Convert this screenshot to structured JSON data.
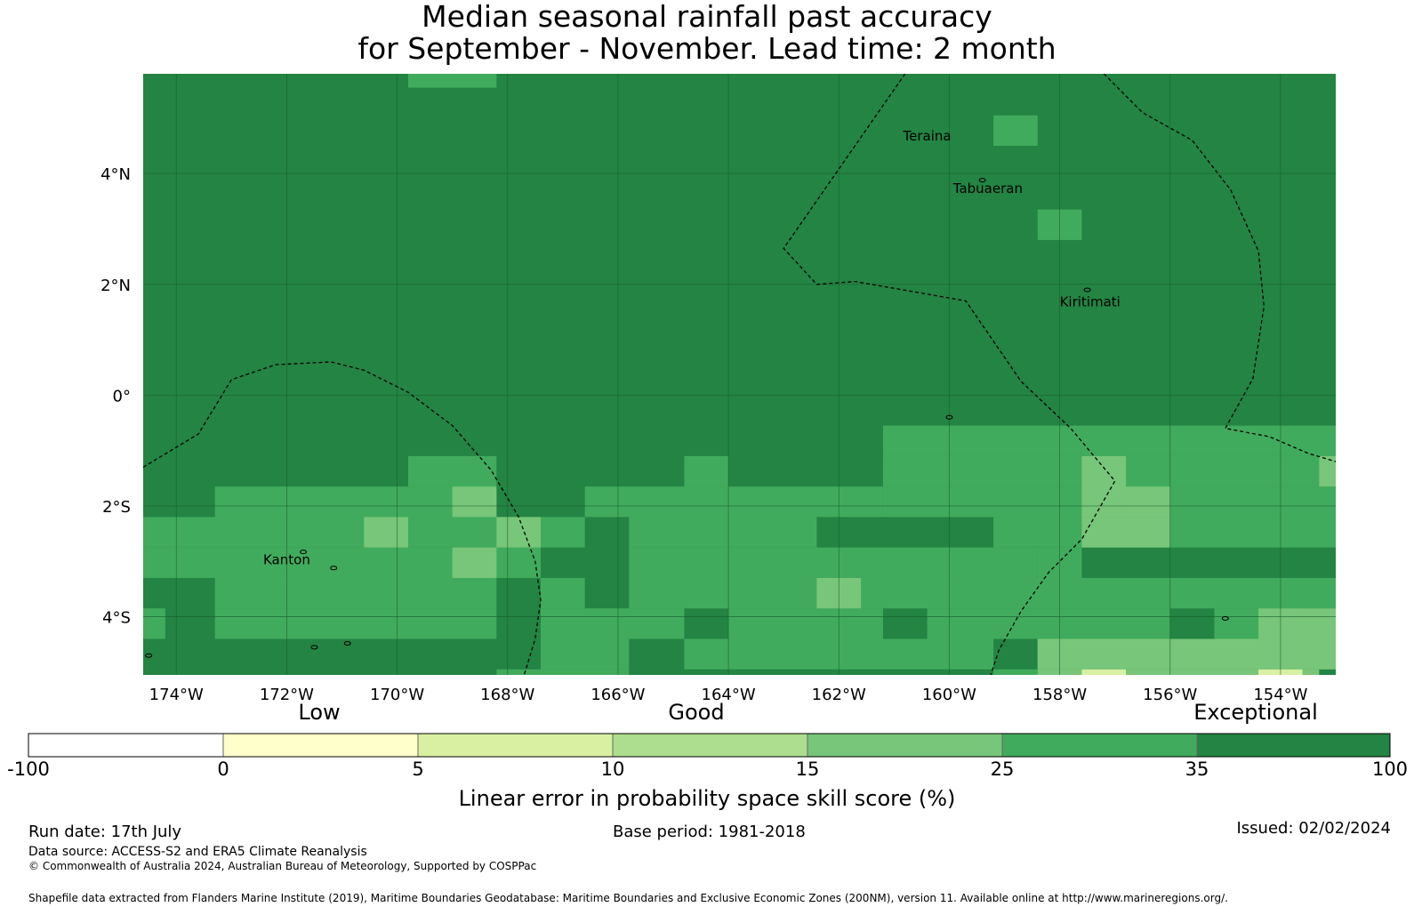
{
  "title_line1": "Median seasonal rainfall past accuracy",
  "title_line2": "for September - November. Lead time: 2 month",
  "map": {
    "lon_range": [
      -174.6,
      -153.0
    ],
    "lat_range": [
      -5.05,
      5.8
    ],
    "lon_ticks": [
      {
        "value": -174,
        "label": "174°W"
      },
      {
        "value": -172,
        "label": "172°W"
      },
      {
        "value": -170,
        "label": "170°W"
      },
      {
        "value": -168,
        "label": "168°W"
      },
      {
        "value": -166,
        "label": "166°W"
      },
      {
        "value": -164,
        "label": "164°W"
      },
      {
        "value": -162,
        "label": "162°W"
      },
      {
        "value": -160,
        "label": "160°W"
      },
      {
        "value": -158,
        "label": "158°W"
      },
      {
        "value": -156,
        "label": "156°W"
      },
      {
        "value": -154,
        "label": "154°W"
      }
    ],
    "lat_ticks": [
      {
        "value": 4,
        "label": "4°N"
      },
      {
        "value": 2,
        "label": "2°N"
      },
      {
        "value": 0,
        "label": "0°"
      },
      {
        "value": -2,
        "label": "2°S"
      },
      {
        "value": -4,
        "label": "4°S"
      }
    ],
    "base_color": "#238443",
    "grid_color": "#1a5c2f",
    "skill_cells": [
      {
        "lon": [
          -169.8,
          -168.2
        ],
        "lat": [
          5.55,
          5.8
        ],
        "color": "#41ab5d"
      },
      {
        "lon": [
          -159.2,
          -158.4
        ],
        "lat": [
          4.5,
          5.05
        ],
        "color": "#41ab5d"
      },
      {
        "lon": [
          -158.4,
          -157.6
        ],
        "lat": [
          2.8,
          3.35
        ],
        "color": "#41ab5d"
      },
      {
        "lon": [
          -161.2,
          -153.0
        ],
        "lat": [
          -1.1,
          -0.55
        ],
        "color": "#41ab5d"
      },
      {
        "lon": [
          -169.8,
          -168.2
        ],
        "lat": [
          -1.65,
          -1.1
        ],
        "color": "#41ab5d"
      },
      {
        "lon": [
          -164.8,
          -164.0
        ],
        "lat": [
          -1.65,
          -1.1
        ],
        "color": "#41ab5d"
      },
      {
        "lon": [
          -161.2,
          -153.0
        ],
        "lat": [
          -1.65,
          -1.1
        ],
        "color": "#41ab5d"
      },
      {
        "lon": [
          -173.3,
          -168.2
        ],
        "lat": [
          -2.2,
          -1.65
        ],
        "color": "#41ab5d"
      },
      {
        "lon": [
          -166.6,
          -161.2
        ],
        "lat": [
          -2.2,
          -1.65
        ],
        "color": "#41ab5d"
      },
      {
        "lon": [
          -161.2,
          -153.0
        ],
        "lat": [
          -2.2,
          -1.65
        ],
        "color": "#41ab5d"
      },
      {
        "lon": [
          -174.6,
          -166.6
        ],
        "lat": [
          -2.75,
          -2.2
        ],
        "color": "#41ab5d"
      },
      {
        "lon": [
          -165.8,
          -162.4
        ],
        "lat": [
          -2.75,
          -2.2
        ],
        "color": "#41ab5d"
      },
      {
        "lon": [
          -159.2,
          -153.0
        ],
        "lat": [
          -2.75,
          -2.2
        ],
        "color": "#41ab5d"
      },
      {
        "lon": [
          -174.6,
          -167.4
        ],
        "lat": [
          -3.3,
          -2.75
        ],
        "color": "#41ab5d"
      },
      {
        "lon": [
          -165.8,
          -158.4
        ],
        "lat": [
          -3.3,
          -2.75
        ],
        "color": "#41ab5d"
      },
      {
        "lon": [
          -158.4,
          -157.6
        ],
        "lat": [
          -3.3,
          -2.75
        ],
        "color": "#41ab5d"
      },
      {
        "lon": [
          -173.3,
          -168.2
        ],
        "lat": [
          -3.85,
          -3.3
        ],
        "color": "#41ab5d"
      },
      {
        "lon": [
          -167.4,
          -166.6
        ],
        "lat": [
          -3.85,
          -3.3
        ],
        "color": "#41ab5d"
      },
      {
        "lon": [
          -165.8,
          -153.0
        ],
        "lat": [
          -3.85,
          -3.3
        ],
        "color": "#41ab5d"
      },
      {
        "lon": [
          -174.6,
          -174.2
        ],
        "lat": [
          -4.4,
          -3.85
        ],
        "color": "#41ab5d"
      },
      {
        "lon": [
          -173.3,
          -168.2
        ],
        "lat": [
          -4.4,
          -3.85
        ],
        "color": "#41ab5d"
      },
      {
        "lon": [
          -167.4,
          -164.8
        ],
        "lat": [
          -4.4,
          -3.85
        ],
        "color": "#41ab5d"
      },
      {
        "lon": [
          -164.0,
          -161.2
        ],
        "lat": [
          -4.4,
          -3.85
        ],
        "color": "#41ab5d"
      },
      {
        "lon": [
          -160.4,
          -156.0
        ],
        "lat": [
          -4.4,
          -3.85
        ],
        "color": "#41ab5d"
      },
      {
        "lon": [
          -155.2,
          -153.6
        ],
        "lat": [
          -4.4,
          -3.85
        ],
        "color": "#41ab5d"
      },
      {
        "lon": [
          -167.4,
          -165.8
        ],
        "lat": [
          -4.95,
          -4.4
        ],
        "color": "#41ab5d"
      },
      {
        "lon": [
          -164.8,
          -159.2
        ],
        "lat": [
          -4.95,
          -4.4
        ],
        "color": "#41ab5d"
      },
      {
        "lon": [
          -158.4,
          -153.0
        ],
        "lat": [
          -4.95,
          -4.4
        ],
        "color": "#41ab5d"
      },
      {
        "lon": [
          -168.2,
          -165.8
        ],
        "lat": [
          -5.05,
          -4.95
        ],
        "color": "#41ab5d"
      },
      {
        "lon": [
          -159.2,
          -158.4
        ],
        "lat": [
          -5.05,
          -4.95
        ],
        "color": "#41ab5d"
      },
      {
        "lon": [
          -153.3,
          -153.0
        ],
        "lat": [
          -1.65,
          -1.1
        ],
        "color": "#78c679"
      },
      {
        "lon": [
          -157.6,
          -156.8
        ],
        "lat": [
          -2.2,
          -1.1
        ],
        "color": "#78c679"
      },
      {
        "lon": [
          -156.8,
          -156.0
        ],
        "lat": [
          -2.2,
          -1.65
        ],
        "color": "#78c679"
      },
      {
        "lon": [
          -169.0,
          -168.2
        ],
        "lat": [
          -2.2,
          -1.65
        ],
        "color": "#78c679"
      },
      {
        "lon": [
          -170.6,
          -169.8
        ],
        "lat": [
          -2.75,
          -2.2
        ],
        "color": "#78c679"
      },
      {
        "lon": [
          -168.2,
          -167.4
        ],
        "lat": [
          -2.75,
          -2.2
        ],
        "color": "#78c679"
      },
      {
        "lon": [
          -157.6,
          -156.0
        ],
        "lat": [
          -2.75,
          -2.2
        ],
        "color": "#78c679"
      },
      {
        "lon": [
          -169.0,
          -168.2
        ],
        "lat": [
          -3.3,
          -2.75
        ],
        "color": "#78c679"
      },
      {
        "lon": [
          -162.4,
          -161.6
        ],
        "lat": [
          -3.85,
          -3.3
        ],
        "color": "#78c679"
      },
      {
        "lon": [
          -154.4,
          -153.0
        ],
        "lat": [
          -4.4,
          -3.85
        ],
        "color": "#78c679"
      },
      {
        "lon": [
          -158.4,
          -153.0
        ],
        "lat": [
          -4.95,
          -4.4
        ],
        "color": "#78c679"
      },
      {
        "lon": [
          -158.4,
          -157.6
        ],
        "lat": [
          -5.05,
          -4.95
        ],
        "color": "#78c679"
      },
      {
        "lon": [
          -156.8,
          -154.4
        ],
        "lat": [
          -5.05,
          -4.95
        ],
        "color": "#78c679"
      },
      {
        "lon": [
          -153.6,
          -153.3
        ],
        "lat": [
          -5.05,
          -4.95
        ],
        "color": "#78c679"
      },
      {
        "lon": [
          -157.6,
          -156.8
        ],
        "lat": [
          -5.05,
          -4.95
        ],
        "color": "#d9f0a3"
      },
      {
        "lon": [
          -154.4,
          -153.6
        ],
        "lat": [
          -5.05,
          -4.95
        ],
        "color": "#d9f0a3"
      }
    ],
    "boundaries": [
      [
        [
          -174.6,
          -1.3
        ],
        [
          -173.6,
          -0.7
        ],
        [
          -173.0,
          0.28
        ],
        [
          -172.2,
          0.55
        ],
        [
          -171.2,
          0.6
        ],
        [
          -170.6,
          0.45
        ],
        [
          -169.8,
          0.05
        ],
        [
          -169.0,
          -0.55
        ],
        [
          -168.3,
          -1.35
        ],
        [
          -167.8,
          -2.2
        ],
        [
          -167.5,
          -3.0
        ],
        [
          -167.4,
          -3.7
        ],
        [
          -167.5,
          -4.4
        ],
        [
          -167.7,
          -5.05
        ]
      ],
      [
        [
          -160.8,
          5.8
        ],
        [
          -163.0,
          2.65
        ],
        [
          -162.4,
          2.0
        ],
        [
          -161.7,
          2.05
        ],
        [
          -159.7,
          1.7
        ],
        [
          -158.7,
          0.25
        ],
        [
          -157.8,
          -0.6
        ],
        [
          -157.0,
          -1.55
        ],
        [
          -157.6,
          -2.6
        ],
        [
          -158.2,
          -3.2
        ],
        [
          -158.7,
          -3.9
        ],
        [
          -159.1,
          -4.6
        ],
        [
          -159.25,
          -5.05
        ]
      ],
      [
        [
          -157.2,
          5.8
        ],
        [
          -156.5,
          5.1
        ],
        [
          -155.6,
          4.6
        ],
        [
          -154.9,
          3.7
        ],
        [
          -154.4,
          2.6
        ],
        [
          -154.3,
          1.6
        ],
        [
          -154.5,
          0.3
        ],
        [
          -155.0,
          -0.6
        ],
        [
          -154.2,
          -0.75
        ],
        [
          -153.5,
          -1.05
        ],
        [
          -153.0,
          -1.2
        ]
      ]
    ],
    "islands": [
      {
        "lon": -159.4,
        "lat": 3.88
      },
      {
        "lon": -157.5,
        "lat": 1.9
      },
      {
        "lon": -171.7,
        "lat": -2.83
      },
      {
        "lon": -171.15,
        "lat": -3.12
      },
      {
        "lon": -174.5,
        "lat": -4.7
      },
      {
        "lon": -171.5,
        "lat": -4.55
      },
      {
        "lon": -170.9,
        "lat": -4.48
      },
      {
        "lon": -155.0,
        "lat": -4.03
      },
      {
        "lon": -160.0,
        "lat": -0.4
      }
    ],
    "place_labels": [
      {
        "name": "Teraina",
        "lon": -160.4,
        "lat": 4.6
      },
      {
        "name": "Tabuaeran",
        "lon": -159.3,
        "lat": 3.65
      },
      {
        "name": "Kiritimati",
        "lon": -157.45,
        "lat": 1.6
      },
      {
        "name": "Kanton",
        "lon": -172.0,
        "lat": -3.05
      }
    ]
  },
  "colorbar": {
    "category_labels": [
      "Low",
      "Good",
      "Exceptional"
    ],
    "boundaries": [
      "-100",
      "0",
      "5",
      "10",
      "15",
      "25",
      "35",
      "100"
    ],
    "colors": [
      "#ffffff",
      "#ffffcc",
      "#d9f0a3",
      "#addd8e",
      "#78c679",
      "#41ab5d",
      "#238443"
    ],
    "label": "Linear error in probability space skill score (%)"
  },
  "footer": {
    "run_date": "Run date: 17th July",
    "base_period": "Base period: 1981-2018",
    "issued": "Issued: 02/02/2024",
    "data_source": "Data source: ACCESS-S2 and ERA5 Climate Reanalysis",
    "copyright": "© Commonwealth of Australia 2024, Australian Bureau of Meteorology, Supported by COSPPac",
    "shapefile": "Shapefile data extracted from Flanders Marine Institute (2019), Maritime Boundaries Geodatabase: Maritime Boundaries and Exclusive Economic Zones (200NM), version 11. Available online at http://www.marineregions.org/."
  }
}
